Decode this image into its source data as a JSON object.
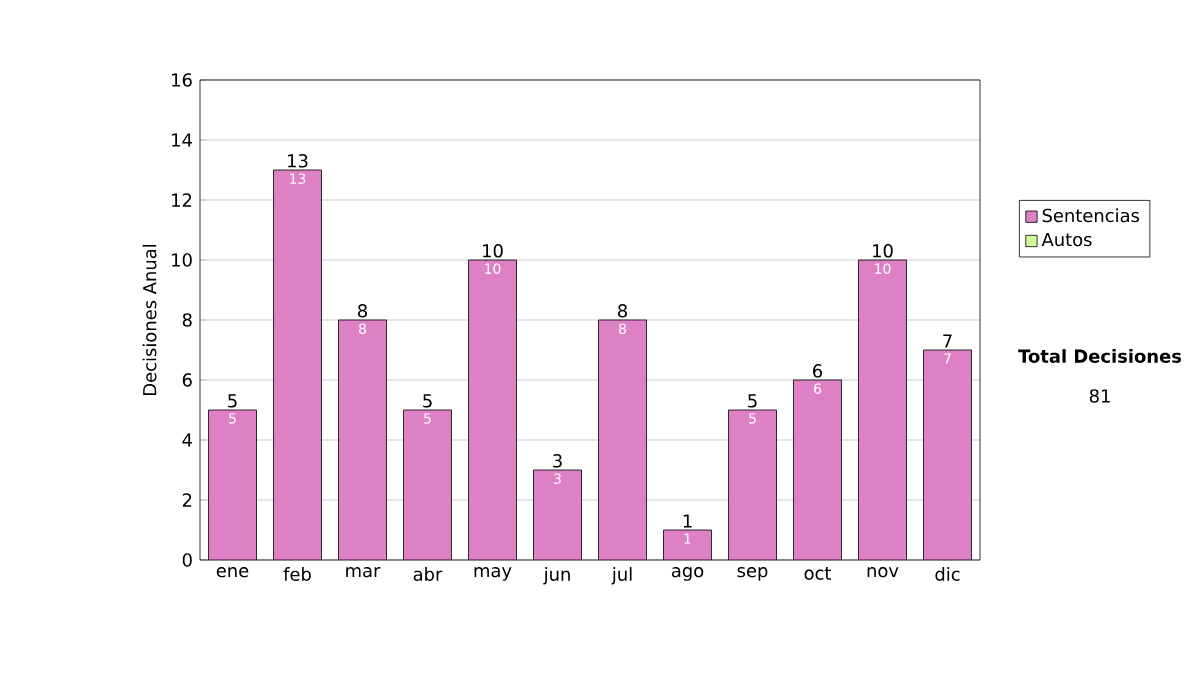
{
  "chart_data": {
    "type": "bar",
    "ylabel": "Decisiones Anual",
    "categories": [
      "ene",
      "feb",
      "mar",
      "abr",
      "may",
      "jun",
      "jul",
      "ago",
      "sep",
      "oct",
      "nov",
      "dic"
    ],
    "series": [
      {
        "name": "Sentencias",
        "color": "#dd80c4",
        "values": [
          5,
          13,
          8,
          5,
          10,
          3,
          8,
          1,
          5,
          6,
          10,
          7
        ],
        "value_labels": [
          "5",
          "13",
          "8",
          "5",
          "10",
          "3",
          "8",
          "1",
          "5",
          "6",
          "10",
          "7"
        ]
      },
      {
        "name": "Autos",
        "color": "#ccff99",
        "values": [
          0,
          0,
          0,
          0,
          0,
          0,
          0,
          0,
          0,
          0,
          0,
          0
        ]
      }
    ],
    "stacked": true,
    "totals": [
      "5",
      "13",
      "8",
      "5",
      "10",
      "3",
      "8",
      "1",
      "5",
      "6",
      "10",
      "7"
    ],
    "ylim": [
      0,
      16
    ],
    "yticks": [
      0,
      2,
      4,
      6,
      8,
      10,
      12,
      14,
      16
    ],
    "grid": "y",
    "legend": "right",
    "annotations": [
      "Total Decisiones",
      "81"
    ]
  }
}
